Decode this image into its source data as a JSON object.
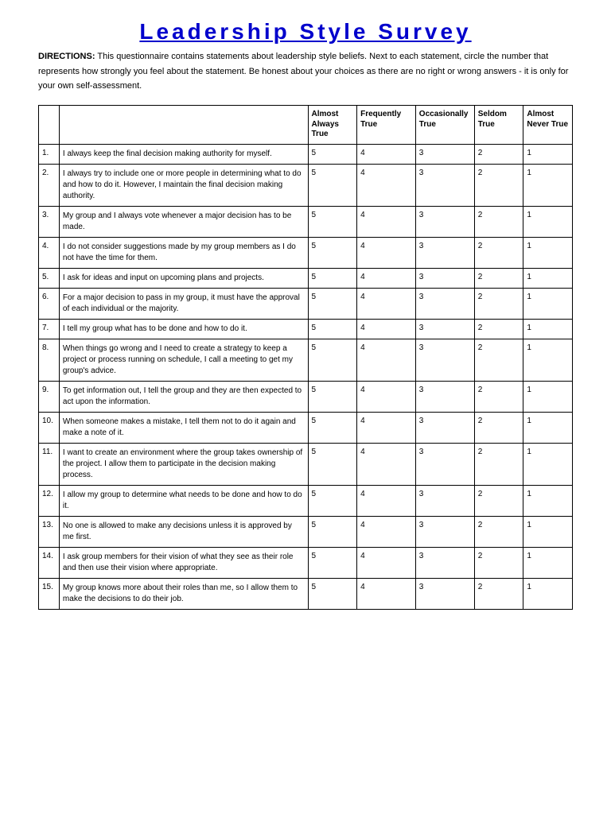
{
  "title": "Leadership Style Survey",
  "directions_label": "DIRECTIONS:",
  "directions_text": "This questionnaire contains statements about leadership style beliefs. Next to each statement, circle the number that represents how strongly you feel about the statement. Be honest about your choices as there are no right or wrong answers - it is only for your own self-assessment.",
  "scale_headers": [
    "Almost Always True",
    "Frequently True",
    "Occasionally True",
    "Seldom True",
    "Almost Never True"
  ],
  "scale_values": [
    "5",
    "4",
    "3",
    "2",
    "1"
  ],
  "questions": [
    {
      "n": "1.",
      "text": "I always keep the final decision making authority for myself."
    },
    {
      "n": "2.",
      "text": "I always try to include one or more people in determining what to do and how to do it. However, I maintain the final decision making authority."
    },
    {
      "n": "3.",
      "text": "My group and I always vote whenever a major decision has to be made."
    },
    {
      "n": "4.",
      "text": "I do not consider suggestions made by my group members as I do not have the time for them."
    },
    {
      "n": "5.",
      "text": "I ask for ideas and input on upcoming plans and projects."
    },
    {
      "n": "6.",
      "text": "For a major decision to pass in my group, it must have the approval of each individual or the majority."
    },
    {
      "n": "7.",
      "text": "I tell my group what has to be done and how to do it."
    },
    {
      "n": "8.",
      "text": "When things go wrong and I need to create a strategy to keep a project or process running on schedule, I call a meeting to get my group's advice."
    },
    {
      "n": "9.",
      "text": "To get information out, I tell the group and they are then expected to act upon the information."
    },
    {
      "n": "10.",
      "text": "When someone makes a mistake, I tell them not to do it again and make a note of it."
    },
    {
      "n": "11.",
      "text": "I want to create an environment where the group takes ownership of the project. I allow them to participate in the decision making process."
    },
    {
      "n": "12.",
      "text": "I allow my group to determine what needs to be done and how to do it."
    },
    {
      "n": "13.",
      "text": "No one is allowed to make any decisions unless it is approved by me first."
    },
    {
      "n": "14.",
      "text": "I ask group members for their vision of what they see as their role and then use their vision where appropriate."
    },
    {
      "n": "15.",
      "text": "My group knows more about their roles than me, so I allow them to make the decisions to do their job."
    }
  ],
  "colors": {
    "title": "#0000cc",
    "text": "#000000",
    "border": "#000000",
    "background": "#ffffff"
  }
}
